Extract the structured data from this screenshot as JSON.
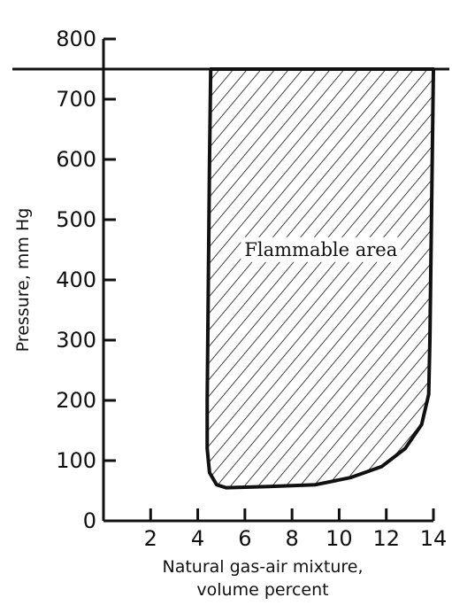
{
  "chart_data": {
    "type": "area",
    "xlabel": [
      "Natural gas-air mixture,",
      "volume percent"
    ],
    "ylabel": "Pressure, mm Hg",
    "xlim": [
      0,
      14
    ],
    "ylim": [
      0,
      800
    ],
    "x_ticks": [
      2,
      4,
      6,
      8,
      10,
      12,
      14
    ],
    "y_ticks": [
      0,
      100,
      200,
      300,
      400,
      500,
      600,
      700,
      800
    ],
    "reference_line_y": 750,
    "annotation": "Flammable area",
    "grid": false,
    "region_boundary": [
      {
        "x": 4.55,
        "y": 750
      },
      {
        "x": 4.5,
        "y": 600
      },
      {
        "x": 4.45,
        "y": 400
      },
      {
        "x": 4.4,
        "y": 200
      },
      {
        "x": 4.4,
        "y": 120
      },
      {
        "x": 4.5,
        "y": 80
      },
      {
        "x": 4.8,
        "y": 60
      },
      {
        "x": 5.2,
        "y": 55
      },
      {
        "x": 7.0,
        "y": 57
      },
      {
        "x": 9.0,
        "y": 60
      },
      {
        "x": 10.5,
        "y": 72
      },
      {
        "x": 11.8,
        "y": 90
      },
      {
        "x": 12.8,
        "y": 120
      },
      {
        "x": 13.5,
        "y": 160
      },
      {
        "x": 13.8,
        "y": 210
      },
      {
        "x": 13.85,
        "y": 300
      },
      {
        "x": 13.9,
        "y": 450
      },
      {
        "x": 13.95,
        "y": 600
      },
      {
        "x": 14.0,
        "y": 750
      }
    ]
  }
}
